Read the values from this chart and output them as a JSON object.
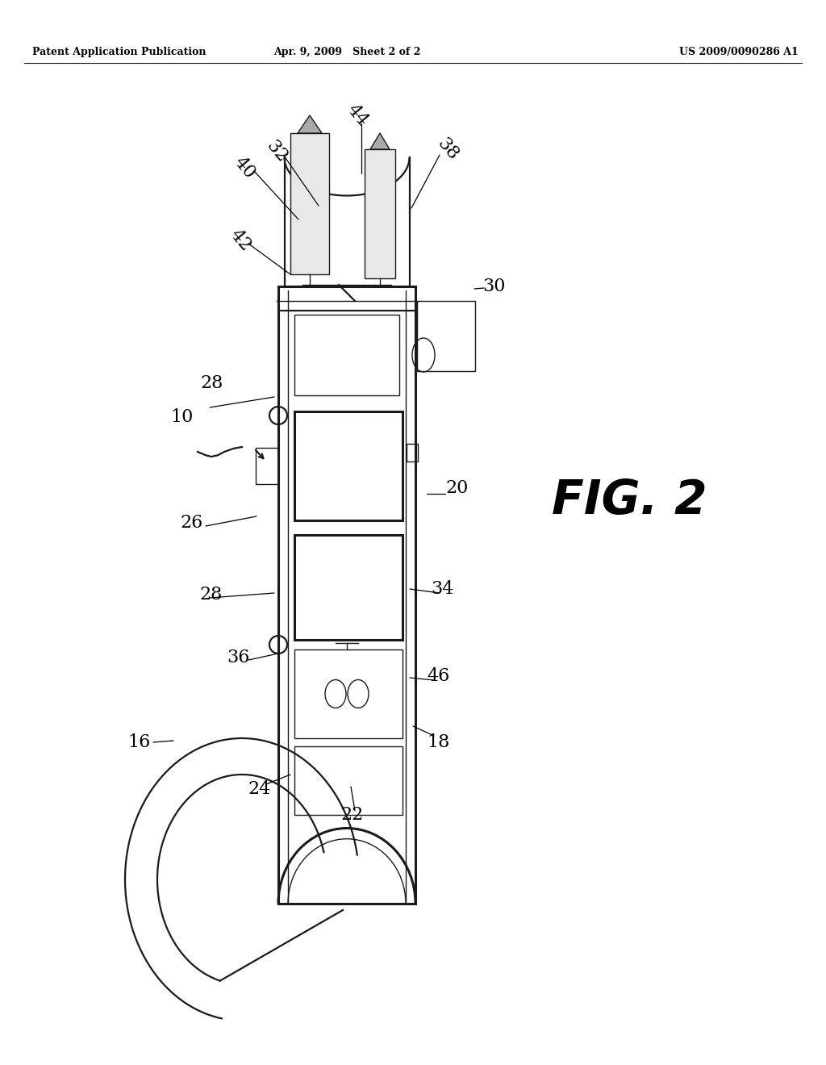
{
  "bg_color": "#ffffff",
  "line_color": "#1a1a1a",
  "header_left": "Patent Application Publication",
  "header_mid": "Apr. 9, 2009   Sheet 2 of 2",
  "header_right": "US 2009/0090286 A1",
  "fig_label": "FIG. 2",
  "lw_main": 1.6,
  "lw_thin": 1.0,
  "lw_thick": 2.2
}
